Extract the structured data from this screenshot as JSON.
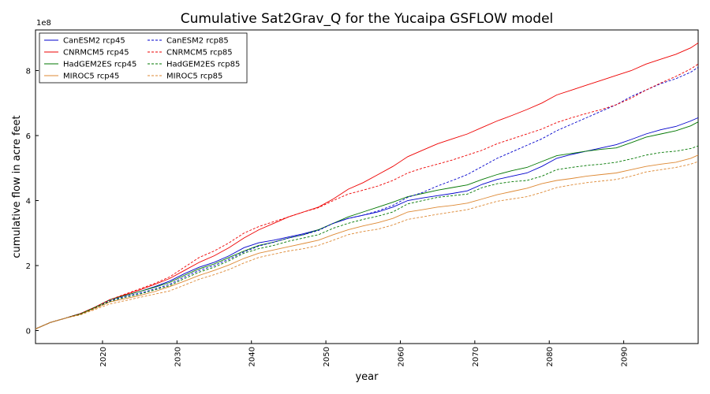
{
  "chart_data": {
    "type": "line",
    "title": "Cumulative Sat2Grav_Q for the Yucaipa GSFLOW model",
    "xlabel": "year",
    "ylabel": "cumulative flow in acre feet",
    "y_multiplier_label": "1e8",
    "xlim": [
      2011,
      2100
    ],
    "ylim": [
      -0.4,
      9.25
    ],
    "x_ticks": [
      2020,
      2030,
      2040,
      2050,
      2060,
      2070,
      2080,
      2090
    ],
    "x_tick_labels": [
      "2020",
      "2030",
      "2040",
      "2050",
      "2060",
      "2070",
      "2080",
      "2090"
    ],
    "y_ticks": [
      0,
      2,
      4,
      6,
      8
    ],
    "y_tick_labels": [
      "0",
      "2",
      "4",
      "6",
      "8"
    ],
    "grid": false,
    "legend_position": "top-left",
    "x": [
      2011,
      2013,
      2015,
      2017,
      2019,
      2021,
      2023,
      2025,
      2027,
      2029,
      2031,
      2033,
      2035,
      2037,
      2039,
      2041,
      2043,
      2045,
      2047,
      2049,
      2051,
      2053,
      2055,
      2057,
      2059,
      2061,
      2063,
      2065,
      2067,
      2069,
      2071,
      2073,
      2075,
      2077,
      2079,
      2081,
      2083,
      2085,
      2087,
      2089,
      2091,
      2093,
      2095,
      2097,
      2099,
      2100
    ],
    "series": [
      {
        "name": "CanESM2 rcp45",
        "color": "#0000cc",
        "style": "solid",
        "values": [
          0.05,
          0.25,
          0.38,
          0.52,
          0.72,
          0.95,
          1.08,
          1.2,
          1.35,
          1.52,
          1.75,
          1.95,
          2.1,
          2.3,
          2.55,
          2.7,
          2.78,
          2.88,
          2.98,
          3.1,
          3.3,
          3.45,
          3.55,
          3.65,
          3.8,
          4.0,
          4.08,
          4.15,
          4.22,
          4.3,
          4.5,
          4.65,
          4.75,
          4.85,
          5.05,
          5.3,
          5.42,
          5.52,
          5.62,
          5.72,
          5.88,
          6.05,
          6.18,
          6.28,
          6.45,
          6.55
        ]
      },
      {
        "name": "CNRMCM5 rcp45",
        "color": "#ee0000",
        "style": "solid",
        "values": [
          0.05,
          0.25,
          0.38,
          0.52,
          0.72,
          0.95,
          1.1,
          1.25,
          1.42,
          1.6,
          1.85,
          2.1,
          2.3,
          2.55,
          2.85,
          3.1,
          3.3,
          3.5,
          3.65,
          3.8,
          4.05,
          4.35,
          4.55,
          4.8,
          5.05,
          5.35,
          5.55,
          5.75,
          5.9,
          6.05,
          6.25,
          6.45,
          6.62,
          6.8,
          7.0,
          7.25,
          7.4,
          7.55,
          7.7,
          7.85,
          8.0,
          8.2,
          8.35,
          8.5,
          8.7,
          8.85
        ]
      },
      {
        "name": "HadGEM2ES rcp45",
        "color": "#007700",
        "style": "solid",
        "values": [
          0.05,
          0.25,
          0.38,
          0.52,
          0.72,
          0.95,
          1.08,
          1.2,
          1.33,
          1.48,
          1.7,
          1.9,
          2.05,
          2.25,
          2.45,
          2.62,
          2.72,
          2.85,
          2.95,
          3.1,
          3.3,
          3.5,
          3.65,
          3.8,
          3.95,
          4.12,
          4.22,
          4.32,
          4.4,
          4.48,
          4.65,
          4.8,
          4.92,
          5.02,
          5.2,
          5.38,
          5.45,
          5.52,
          5.58,
          5.62,
          5.78,
          5.95,
          6.05,
          6.15,
          6.3,
          6.42
        ]
      },
      {
        "name": "MIROC5 rcp45",
        "color": "#dd8833",
        "style": "solid",
        "values": [
          0.05,
          0.25,
          0.38,
          0.5,
          0.68,
          0.88,
          0.98,
          1.08,
          1.2,
          1.35,
          1.52,
          1.7,
          1.85,
          2.02,
          2.22,
          2.38,
          2.48,
          2.58,
          2.68,
          2.78,
          2.95,
          3.1,
          3.22,
          3.32,
          3.45,
          3.65,
          3.72,
          3.8,
          3.85,
          3.92,
          4.05,
          4.18,
          4.28,
          4.38,
          4.52,
          4.62,
          4.68,
          4.75,
          4.8,
          4.85,
          4.95,
          5.05,
          5.12,
          5.18,
          5.3,
          5.4
        ]
      },
      {
        "name": "CanESM2 rcp85",
        "color": "#0000cc",
        "style": "dashed",
        "values": [
          0.05,
          0.25,
          0.38,
          0.52,
          0.7,
          0.92,
          1.05,
          1.15,
          1.28,
          1.42,
          1.65,
          1.85,
          2.0,
          2.2,
          2.42,
          2.6,
          2.72,
          2.85,
          2.95,
          3.08,
          3.3,
          3.45,
          3.55,
          3.68,
          3.85,
          4.1,
          4.25,
          4.45,
          4.62,
          4.8,
          5.05,
          5.3,
          5.5,
          5.7,
          5.9,
          6.15,
          6.35,
          6.55,
          6.75,
          6.95,
          7.2,
          7.4,
          7.6,
          7.75,
          7.95,
          8.1
        ]
      },
      {
        "name": "CNRMCM5 rcp85",
        "color": "#ee0000",
        "style": "dashed",
        "values": [
          0.05,
          0.25,
          0.38,
          0.52,
          0.72,
          0.95,
          1.12,
          1.28,
          1.45,
          1.65,
          1.95,
          2.25,
          2.45,
          2.7,
          3.0,
          3.2,
          3.35,
          3.5,
          3.65,
          3.78,
          4.0,
          4.2,
          4.32,
          4.45,
          4.62,
          4.85,
          5.0,
          5.12,
          5.25,
          5.4,
          5.55,
          5.75,
          5.9,
          6.05,
          6.2,
          6.4,
          6.55,
          6.68,
          6.8,
          6.95,
          7.15,
          7.4,
          7.62,
          7.82,
          8.05,
          8.2
        ]
      },
      {
        "name": "HadGEM2ES rcp85",
        "color": "#007700",
        "style": "dashed",
        "values": [
          0.05,
          0.25,
          0.38,
          0.5,
          0.7,
          0.9,
          1.02,
          1.12,
          1.25,
          1.38,
          1.6,
          1.8,
          1.95,
          2.15,
          2.38,
          2.52,
          2.62,
          2.75,
          2.85,
          2.95,
          3.15,
          3.3,
          3.42,
          3.52,
          3.65,
          3.9,
          4.0,
          4.1,
          4.15,
          4.2,
          4.4,
          4.52,
          4.58,
          4.62,
          4.75,
          4.95,
          5.02,
          5.08,
          5.12,
          5.18,
          5.28,
          5.4,
          5.48,
          5.52,
          5.6,
          5.68
        ]
      },
      {
        "name": "MIROC5 rcp85",
        "color": "#dd8833",
        "style": "dashed",
        "values": [
          0.05,
          0.25,
          0.38,
          0.48,
          0.65,
          0.82,
          0.92,
          1.02,
          1.12,
          1.22,
          1.4,
          1.58,
          1.72,
          1.88,
          2.08,
          2.25,
          2.35,
          2.45,
          2.52,
          2.62,
          2.78,
          2.95,
          3.05,
          3.12,
          3.25,
          3.42,
          3.5,
          3.58,
          3.65,
          3.72,
          3.85,
          3.98,
          4.05,
          4.12,
          4.25,
          4.4,
          4.48,
          4.55,
          4.6,
          4.65,
          4.75,
          4.88,
          4.95,
          5.02,
          5.12,
          5.2
        ]
      }
    ]
  }
}
